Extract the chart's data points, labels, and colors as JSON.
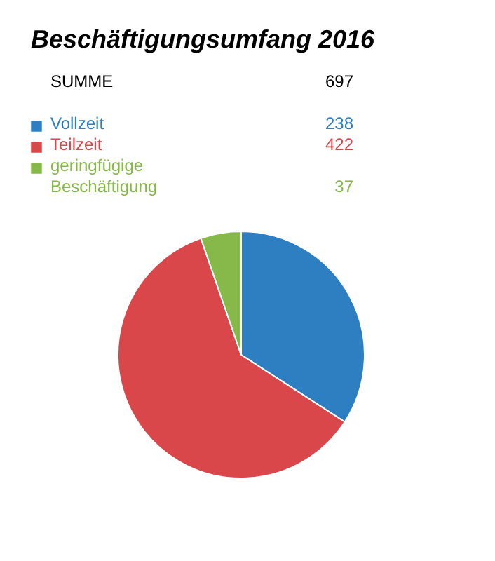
{
  "chart_data": {
    "type": "pie",
    "title": "Beschäftigungsumfang 2016",
    "annotations": [
      "SUMME",
      "697"
    ],
    "categories": [
      "Vollzeit",
      "Teilzeit",
      "geringfügige Beschäftigung"
    ],
    "values": [
      238,
      422,
      37
    ],
    "colors": [
      "#2e7fc1",
      "#d9474a",
      "#86b84a"
    ],
    "data_labels": true,
    "legend": "top"
  }
}
